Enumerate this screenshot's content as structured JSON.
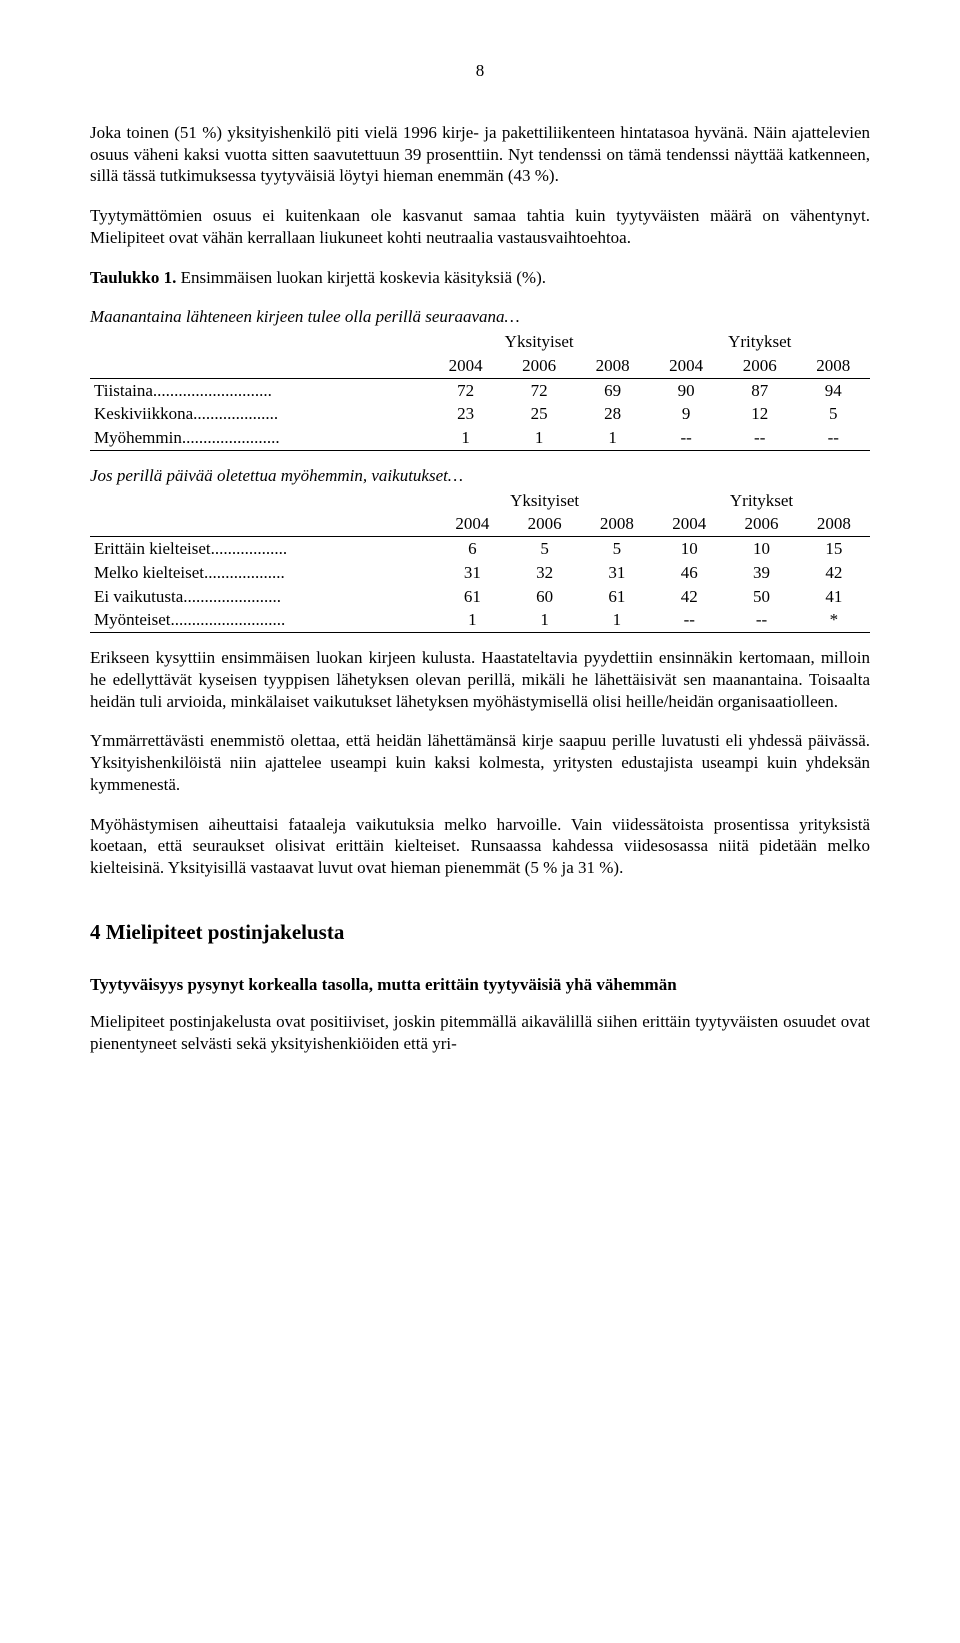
{
  "page_number": "8",
  "para1": "Joka toinen (51 %) yksityishenkilö piti vielä 1996 kirje- ja pakettiliikenteen hintatasoa hyvänä. Näin ajattelevien osuus väheni kaksi vuotta sitten saavutettuun 39 prosenttiin. Nyt tendenssi on tämä tendenssi näyttää katkenneen, sillä tässä tutkimuksessa tyytyväisiä löytyi hieman enemmän (43 %).",
  "para2": "Tyytymättömien osuus ei kuitenkaan ole kasvanut samaa tahtia kuin tyytyväisten määrä on vähentynyt. Mielipiteet ovat vähän kerrallaan liukuneet kohti neutraalia vastausvaihtoehtoa.",
  "table1_title_label": "Taulukko 1.",
  "table1_title_rest": " Ensimmäisen luokan kirjettä koskevia käsityksiä (%).",
  "table1_subtitle": "Maanantaina lähteneen kirjeen tulee olla perillä seuraavana…",
  "group_private": "Yksityiset",
  "group_company": "Yritykset",
  "years": [
    "2004",
    "2006",
    "2008",
    "2004",
    "2006",
    "2008"
  ],
  "table1_rows": [
    {
      "label": "Tiistaina",
      "dots": "............................",
      "vals": [
        "72",
        "72",
        "69",
        "90",
        "87",
        "94"
      ]
    },
    {
      "label": "Keskiviikkona",
      "dots": "....................",
      "vals": [
        "23",
        "25",
        "28",
        "9",
        "12",
        "5"
      ]
    },
    {
      "label": "Myöhemmin",
      "dots": ".......................",
      "vals": [
        "1",
        "1",
        "1",
        "--",
        "--",
        "--"
      ]
    }
  ],
  "table2_subtitle": "Jos perillä päivää oletettua myöhemmin, vaikutukset…",
  "table2_rows": [
    {
      "label": "Erittäin kielteiset",
      "dots": "..................",
      "vals": [
        "6",
        "5",
        "5",
        "10",
        "10",
        "15"
      ]
    },
    {
      "label": "Melko kielteiset",
      "dots": "...................",
      "vals": [
        "31",
        "32",
        "31",
        "46",
        "39",
        "42"
      ]
    },
    {
      "label": "Ei vaikutusta",
      "dots": ".......................",
      "vals": [
        "61",
        "60",
        "61",
        "42",
        "50",
        "41"
      ]
    },
    {
      "label": "Myönteiset",
      "dots": "...........................",
      "vals": [
        "1",
        "1",
        "1",
        "--",
        "--",
        "*"
      ]
    }
  ],
  "para3": "Erikseen kysyttiin ensimmäisen luokan kirjeen kulusta. Haastateltavia pyydettiin ensinnäkin kertomaan, milloin he edellyttävät kyseisen tyyppisen lähetyksen olevan perillä, mikäli he lähettäisivät sen maanantaina. Toisaalta heidän tuli arvioida, minkälaiset vaikutukset lähetyksen myöhästymisellä olisi heille/heidän organisaatiolleen.",
  "para4": "Ymmärrettävästi enemmistö olettaa, että heidän lähettämänsä kirje saapuu perille luvatusti eli yhdessä päivässä. Yksityishenkilöistä niin ajattelee useampi kuin kaksi kolmesta, yritysten edustajista useampi kuin yhdeksän kymmenestä.",
  "para5": "Myöhästymisen aiheuttaisi fataaleja vaikutuksia melko harvoille. Vain viidessätoista prosentissa yrityksistä koetaan, että seuraukset olisivat erittäin kielteiset. Runsaassa kahdessa viidesosassa niitä pidetään melko kielteisinä. Yksityisillä vastaavat luvut ovat hieman pienemmät (5 % ja 31 %).",
  "section_heading": "4   Mielipiteet postinjakelusta",
  "subheading": "Tyytyväisyys pysynyt korkealla tasolla, mutta erittäin tyytyväisiä yhä vähemmän",
  "para6": "Mielipiteet postinjakelusta ovat positiiviset, joskin pitemmällä aikavälillä siihen erittäin tyytyväisten osuudet ovat pienentyneet selvästi sekä yksityishenkiöiden että yri-"
}
